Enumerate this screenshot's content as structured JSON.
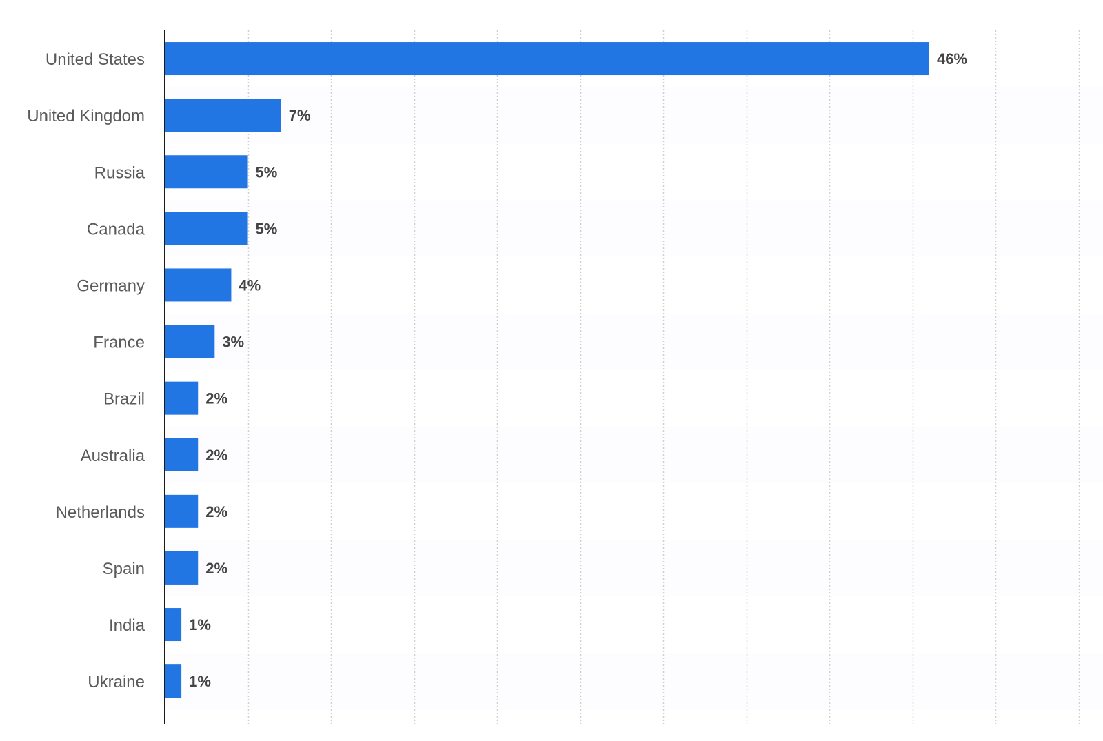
{
  "chart_data": {
    "type": "bar",
    "orientation": "horizontal",
    "title": "",
    "xlabel": "",
    "ylabel": "",
    "categories": [
      "United States",
      "United Kingdom",
      "Russia",
      "Canada",
      "Germany",
      "France",
      "Brazil",
      "Australia",
      "Netherlands",
      "Spain",
      "India",
      "Ukraine"
    ],
    "values": [
      46,
      7,
      5,
      5,
      4,
      3,
      2,
      2,
      2,
      2,
      1,
      1
    ],
    "value_labels": [
      "46%",
      "7%",
      "5%",
      "5%",
      "4%",
      "3%",
      "2%",
      "2%",
      "2%",
      "2%",
      "1%",
      "1%"
    ],
    "unit": "%",
    "xlim": [
      0,
      55
    ],
    "grid": "vertical dotted",
    "legend": "none",
    "colors": {
      "bar": "#2176e3",
      "category_label": "#5a5a5a",
      "value_label": "#444444",
      "axis": "#1a1a1a",
      "grid": "#d0d0d0",
      "band": "#fdfcfe"
    }
  }
}
